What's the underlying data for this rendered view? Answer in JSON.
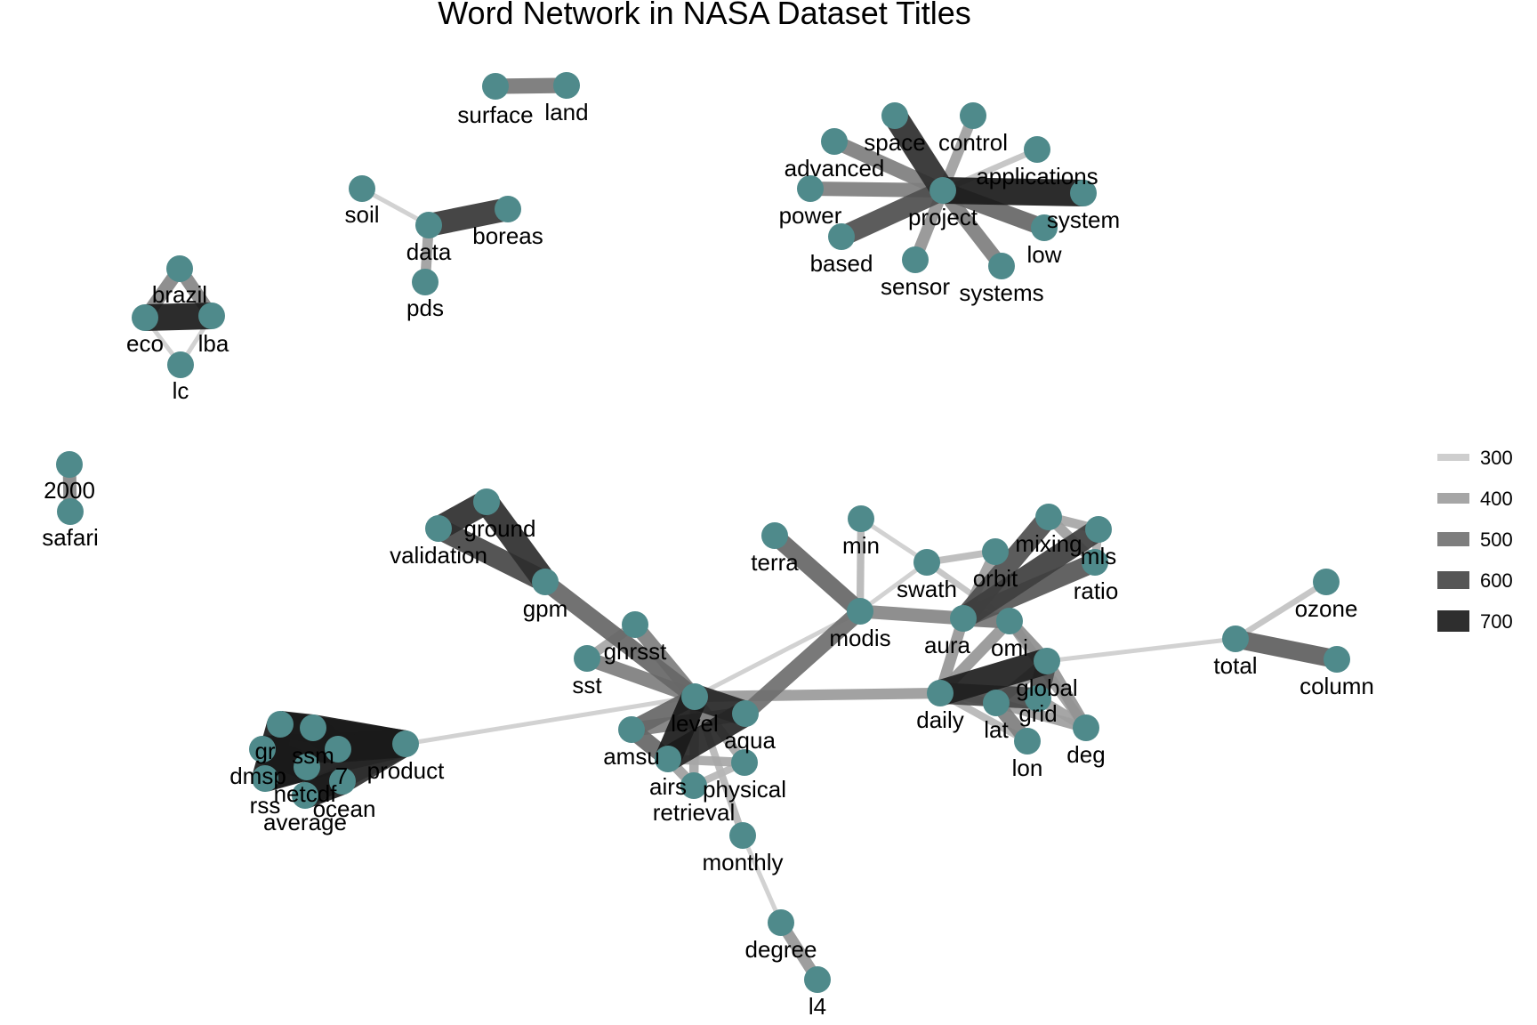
{
  "title": "Word Network in NASA Dataset Titles",
  "colors": {
    "node": "#4f8a8b",
    "edge_dark": "#1a1a1a",
    "background": "#ffffff"
  },
  "legend": {
    "items": [
      {
        "label": "300",
        "value": 300
      },
      {
        "label": "400",
        "value": 400
      },
      {
        "label": "500",
        "value": 500
      },
      {
        "label": "600",
        "value": 600
      },
      {
        "label": "700",
        "value": 700
      }
    ]
  },
  "nodes": [
    {
      "id": "surface",
      "label": "surface"
    },
    {
      "id": "land",
      "label": "land"
    },
    {
      "id": "soil",
      "label": "soil"
    },
    {
      "id": "data",
      "label": "data"
    },
    {
      "id": "boreas",
      "label": "boreas"
    },
    {
      "id": "pds",
      "label": "pds"
    },
    {
      "id": "brazil",
      "label": "brazil"
    },
    {
      "id": "eco",
      "label": "eco"
    },
    {
      "id": "lba",
      "label": "lba"
    },
    {
      "id": "lc",
      "label": "lc"
    },
    {
      "id": "2000",
      "label": "2000"
    },
    {
      "id": "safari",
      "label": "safari"
    },
    {
      "id": "space",
      "label": "space"
    },
    {
      "id": "control",
      "label": "control"
    },
    {
      "id": "advanced",
      "label": "advanced"
    },
    {
      "id": "applications",
      "label": "applications"
    },
    {
      "id": "power",
      "label": "power"
    },
    {
      "id": "project",
      "label": "project"
    },
    {
      "id": "system",
      "label": "system"
    },
    {
      "id": "based",
      "label": "based"
    },
    {
      "id": "low",
      "label": "low"
    },
    {
      "id": "sensor",
      "label": "sensor"
    },
    {
      "id": "systems",
      "label": "systems"
    },
    {
      "id": "ground",
      "label": "ground"
    },
    {
      "id": "validation",
      "label": "validation"
    },
    {
      "id": "gpm",
      "label": "gpm"
    },
    {
      "id": "ghrsst",
      "label": "ghrsst"
    },
    {
      "id": "sst",
      "label": "sst"
    },
    {
      "id": "level",
      "label": "level"
    },
    {
      "id": "aqua",
      "label": "aqua"
    },
    {
      "id": "amsu",
      "label": "amsu"
    },
    {
      "id": "airs",
      "label": "airs"
    },
    {
      "id": "physical",
      "label": "physical"
    },
    {
      "id": "retrieval",
      "label": "retrieval"
    },
    {
      "id": "monthly",
      "label": "monthly"
    },
    {
      "id": "degree",
      "label": "degree"
    },
    {
      "id": "l4",
      "label": "l4"
    },
    {
      "id": "gridded",
      "label": "gr"
    },
    {
      "id": "ssm",
      "label": "ssm"
    },
    {
      "id": "dmsp",
      "label": "dmsp"
    },
    {
      "id": "v7",
      "label": "7"
    },
    {
      "id": "netcdf",
      "label": "netcdf"
    },
    {
      "id": "rss",
      "label": "rss"
    },
    {
      "id": "ocean",
      "label": "ocean"
    },
    {
      "id": "average",
      "label": "average"
    },
    {
      "id": "product",
      "label": "product"
    },
    {
      "id": "terra",
      "label": "terra"
    },
    {
      "id": "min",
      "label": "min"
    },
    {
      "id": "modis",
      "label": "modis"
    },
    {
      "id": "swath",
      "label": "swath"
    },
    {
      "id": "orbit",
      "label": "orbit"
    },
    {
      "id": "mixing",
      "label": "mixing"
    },
    {
      "id": "mls",
      "label": "mls"
    },
    {
      "id": "ratio",
      "label": "ratio"
    },
    {
      "id": "aura",
      "label": "aura"
    },
    {
      "id": "omi",
      "label": "omi"
    },
    {
      "id": "global",
      "label": "global"
    },
    {
      "id": "daily",
      "label": "daily"
    },
    {
      "id": "grid",
      "label": "grid"
    },
    {
      "id": "lat",
      "label": "lat"
    },
    {
      "id": "lon",
      "label": "lon"
    },
    {
      "id": "deg",
      "label": "deg"
    },
    {
      "id": "total",
      "label": "total"
    },
    {
      "id": "ozone",
      "label": "ozone"
    },
    {
      "id": "column",
      "label": "column"
    }
  ],
  "edges": [
    {
      "from": "surface",
      "to": "land",
      "value": 520
    },
    {
      "from": "soil",
      "to": "data",
      "value": 300
    },
    {
      "from": "data",
      "to": "boreas",
      "value": 680
    },
    {
      "from": "data",
      "to": "pds",
      "value": 420
    },
    {
      "from": "brazil",
      "to": "eco",
      "value": 480
    },
    {
      "from": "brazil",
      "to": "lba",
      "value": 480
    },
    {
      "from": "eco",
      "to": "lba",
      "value": 760
    },
    {
      "from": "eco",
      "to": "lc",
      "value": 300
    },
    {
      "from": "lba",
      "to": "lc",
      "value": 300
    },
    {
      "from": "2000",
      "to": "safari",
      "value": 480
    },
    {
      "from": "project",
      "to": "space",
      "value": 700
    },
    {
      "from": "project",
      "to": "control",
      "value": 420
    },
    {
      "from": "project",
      "to": "advanced",
      "value": 500
    },
    {
      "from": "project",
      "to": "applications",
      "value": 330
    },
    {
      "from": "project",
      "to": "power",
      "value": 500
    },
    {
      "from": "project",
      "to": "system",
      "value": 780
    },
    {
      "from": "project",
      "to": "based",
      "value": 620
    },
    {
      "from": "project",
      "to": "low",
      "value": 560
    },
    {
      "from": "project",
      "to": "sensor",
      "value": 450
    },
    {
      "from": "project",
      "to": "systems",
      "value": 500
    },
    {
      "from": "ground",
      "to": "validation",
      "value": 700
    },
    {
      "from": "ground",
      "to": "gpm",
      "value": 700
    },
    {
      "from": "validation",
      "to": "gpm",
      "value": 640
    },
    {
      "from": "gpm",
      "to": "level",
      "value": 560
    },
    {
      "from": "ghrsst",
      "to": "level",
      "value": 500
    },
    {
      "from": "sst",
      "to": "level",
      "value": 500
    },
    {
      "from": "sst",
      "to": "ghrsst",
      "value": 400
    },
    {
      "from": "level",
      "to": "aqua",
      "value": 720
    },
    {
      "from": "level",
      "to": "amsu",
      "value": 560
    },
    {
      "from": "level",
      "to": "airs",
      "value": 760
    },
    {
      "from": "level",
      "to": "retrieval",
      "value": 400
    },
    {
      "from": "level",
      "to": "physical",
      "value": 400
    },
    {
      "from": "airs",
      "to": "aqua",
      "value": 720
    },
    {
      "from": "amsu",
      "to": "airs",
      "value": 560
    },
    {
      "from": "amsu",
      "to": "aqua",
      "value": 500
    },
    {
      "from": "airs",
      "to": "physical",
      "value": 400
    },
    {
      "from": "airs",
      "to": "retrieval",
      "value": 420
    },
    {
      "from": "retrieval",
      "to": "physical",
      "value": 360
    },
    {
      "from": "level",
      "to": "monthly",
      "value": 360
    },
    {
      "from": "monthly",
      "to": "degree",
      "value": 300
    },
    {
      "from": "degree",
      "to": "l4",
      "value": 440
    },
    {
      "from": "level",
      "to": "modis",
      "value": 300
    },
    {
      "from": "level",
      "to": "daily",
      "value": 430
    },
    {
      "from": "product",
      "to": "gridded",
      "value": 760
    },
    {
      "from": "product",
      "to": "ssm",
      "value": 760
    },
    {
      "from": "product",
      "to": "dmsp",
      "value": 760
    },
    {
      "from": "product",
      "to": "v7",
      "value": 760
    },
    {
      "from": "product",
      "to": "netcdf",
      "value": 720
    },
    {
      "from": "product",
      "to": "rss",
      "value": 700
    },
    {
      "from": "product",
      "to": "ocean",
      "value": 700
    },
    {
      "from": "product",
      "to": "average",
      "value": 700
    },
    {
      "from": "gridded",
      "to": "ssm",
      "value": 760
    },
    {
      "from": "dmsp",
      "to": "v7",
      "value": 760
    },
    {
      "from": "rss",
      "to": "netcdf",
      "value": 760
    },
    {
      "from": "ocean",
      "to": "average",
      "value": 760
    },
    {
      "from": "ssm",
      "to": "v7",
      "value": 760
    },
    {
      "from": "dmsp",
      "to": "netcdf",
      "value": 760
    },
    {
      "from": "gridded",
      "to": "rss",
      "value": 760
    },
    {
      "from": "product",
      "to": "level",
      "value": 300
    },
    {
      "from": "aqua",
      "to": "modis",
      "value": 540
    },
    {
      "from": "terra",
      "to": "modis",
      "value": 560
    },
    {
      "from": "min",
      "to": "modis",
      "value": 360
    },
    {
      "from": "min",
      "to": "swath",
      "value": 300
    },
    {
      "from": "modis",
      "to": "swath",
      "value": 300
    },
    {
      "from": "modis",
      "to": "aura",
      "value": 480
    },
    {
      "from": "swath",
      "to": "orbit",
      "value": 350
    },
    {
      "from": "swath",
      "to": "omi",
      "value": 330
    },
    {
      "from": "orbit",
      "to": "aura",
      "value": 420
    },
    {
      "from": "aura",
      "to": "mixing",
      "value": 620
    },
    {
      "from": "aura",
      "to": "mls",
      "value": 660
    },
    {
      "from": "aura",
      "to": "ratio",
      "value": 600
    },
    {
      "from": "mixing",
      "to": "mls",
      "value": 400
    },
    {
      "from": "mixing",
      "to": "ratio",
      "value": 420
    },
    {
      "from": "mls",
      "to": "ratio",
      "value": 380
    },
    {
      "from": "aura",
      "to": "omi",
      "value": 520
    },
    {
      "from": "aura",
      "to": "daily",
      "value": 440
    },
    {
      "from": "omi",
      "to": "global",
      "value": 460
    },
    {
      "from": "omi",
      "to": "daily",
      "value": 440
    },
    {
      "from": "omi",
      "to": "deg",
      "value": 420
    },
    {
      "from": "daily",
      "to": "global",
      "value": 740
    },
    {
      "from": "daily",
      "to": "grid",
      "value": 640
    },
    {
      "from": "daily",
      "to": "lat",
      "value": 360
    },
    {
      "from": "daily",
      "to": "lon",
      "value": 360
    },
    {
      "from": "global",
      "to": "grid",
      "value": 620
    },
    {
      "from": "global",
      "to": "deg",
      "value": 450
    },
    {
      "from": "global",
      "to": "lat",
      "value": 440
    },
    {
      "from": "grid",
      "to": "deg",
      "value": 420
    },
    {
      "from": "lat",
      "to": "lon",
      "value": 500
    },
    {
      "from": "lat",
      "to": "deg",
      "value": 420
    },
    {
      "from": "global",
      "to": "total",
      "value": 300
    },
    {
      "from": "total",
      "to": "ozone",
      "value": 330
    },
    {
      "from": "total",
      "to": "column",
      "value": 580
    }
  ]
}
